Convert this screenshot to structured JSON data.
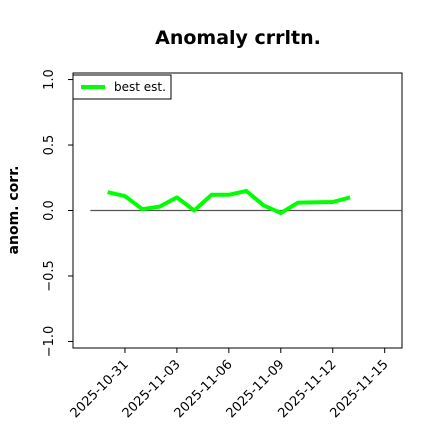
{
  "chart_data": {
    "type": "line",
    "title": "Anomaly crrltn.",
    "xlabel": "",
    "ylabel": "anom. corr.",
    "ylim": [
      -1.05,
      1.05
    ],
    "xlim": [
      "2025-10-28",
      "2025-11-16"
    ],
    "y_ticks": [
      -1.0,
      -0.5,
      0.0,
      0.5,
      1.0
    ],
    "y_tick_labels": [
      "−1.0",
      "−0.5",
      "0.0",
      "0.5",
      "1.0"
    ],
    "x_ticks": [
      "2025-10-31",
      "2025-11-03",
      "2025-11-06",
      "2025-11-09",
      "2025-11-12",
      "2025-11-15"
    ],
    "x_tick_labels": [
      "2025-10-31",
      "2025-11-03",
      "2025-11-06",
      "2025-11-09",
      "2025-11-12",
      "2025-11-15"
    ],
    "reference_line": {
      "y": 0.0,
      "from": "2025-10-29",
      "to": "2025-11-16",
      "color": "#555555"
    },
    "grid": false,
    "legend_position": "top-left",
    "series": [
      {
        "name": "best est.",
        "color": "#00ff00",
        "x": [
          "2025-10-30",
          "2025-10-31",
          "2025-11-01",
          "2025-11-02",
          "2025-11-03",
          "2025-11-04",
          "2025-11-05",
          "2025-11-06",
          "2025-11-07",
          "2025-11-08",
          "2025-11-09",
          "2025-11-10",
          "2025-11-12",
          "2025-11-13"
        ],
        "values": [
          0.14,
          0.11,
          0.01,
          0.03,
          0.1,
          0.0,
          0.12,
          0.12,
          0.15,
          0.04,
          -0.02,
          0.06,
          0.065,
          0.1
        ]
      }
    ]
  }
}
